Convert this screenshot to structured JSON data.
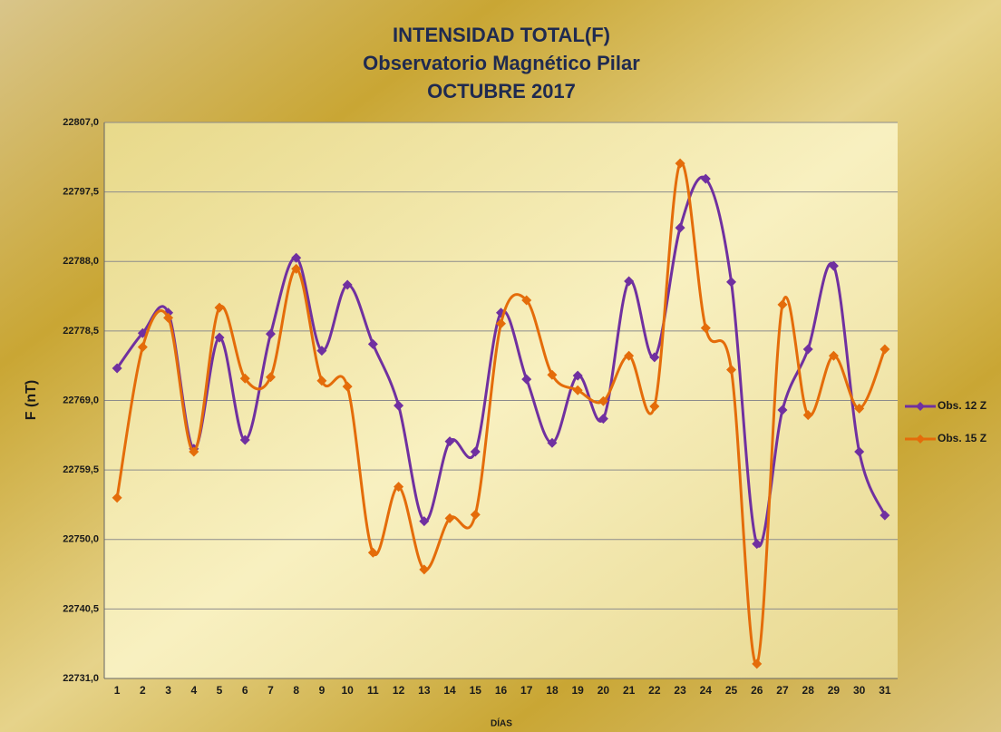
{
  "chart_data": {
    "type": "line",
    "title": [
      "INTENSIDAD TOTAL(F)",
      "Observatorio Magnético Pilar",
      "OCTUBRE 2017"
    ],
    "xlabel": "DÍAS",
    "ylabel": "F (nT)",
    "categories": [
      "1",
      "2",
      "3",
      "4",
      "5",
      "6",
      "7",
      "8",
      "9",
      "10",
      "11",
      "12",
      "13",
      "14",
      "15",
      "16",
      "17",
      "18",
      "19",
      "20",
      "21",
      "22",
      "23",
      "24",
      "25",
      "26",
      "27",
      "28",
      "29",
      "30",
      "31"
    ],
    "series": [
      {
        "name": "Obs. 12 Z",
        "color": "#7030a0",
        "values": [
          22773.4,
          22778.2,
          22781.0,
          22762.4,
          22777.6,
          22763.6,
          22778.1,
          22788.5,
          22775.8,
          22784.8,
          22776.7,
          22768.3,
          22752.5,
          22763.4,
          22762.0,
          22781.0,
          22771.9,
          22763.2,
          22772.4,
          22766.5,
          22785.3,
          22774.9,
          22792.6,
          22799.3,
          22785.2,
          22749.4,
          22767.7,
          22776.0,
          22787.4,
          22762.0,
          22753.3
        ]
      },
      {
        "name": "Obs. 15 Z",
        "color": "#e46c0a",
        "values": [
          22755.7,
          22776.3,
          22780.3,
          22762.0,
          22781.7,
          22772.0,
          22772.2,
          22787.0,
          22771.7,
          22770.9,
          22748.2,
          22757.2,
          22745.9,
          22752.9,
          22753.4,
          22779.5,
          22782.7,
          22772.5,
          22770.4,
          22768.9,
          22775.1,
          22768.2,
          22801.4,
          22778.9,
          22773.2,
          22733.0,
          22782.1,
          22767.0,
          22775.1,
          22767.9,
          22776.0
        ]
      }
    ],
    "ylim": [
      22731.0,
      22807.0
    ],
    "yticks": [
      {
        "value": 22731.0,
        "label": "22731,0"
      },
      {
        "value": 22740.5,
        "label": "22740,5"
      },
      {
        "value": 22750.0,
        "label": "22750,0"
      },
      {
        "value": 22759.5,
        "label": "22759,5"
      },
      {
        "value": 22769.0,
        "label": "22769,0"
      },
      {
        "value": 22778.5,
        "label": "22778,5"
      },
      {
        "value": 22788.0,
        "label": "22788,0"
      },
      {
        "value": 22797.5,
        "label": "22797,5"
      },
      {
        "value": 22807.0,
        "label": "22807,0"
      }
    ],
    "grid": true,
    "smooth": true,
    "legend": "right"
  }
}
